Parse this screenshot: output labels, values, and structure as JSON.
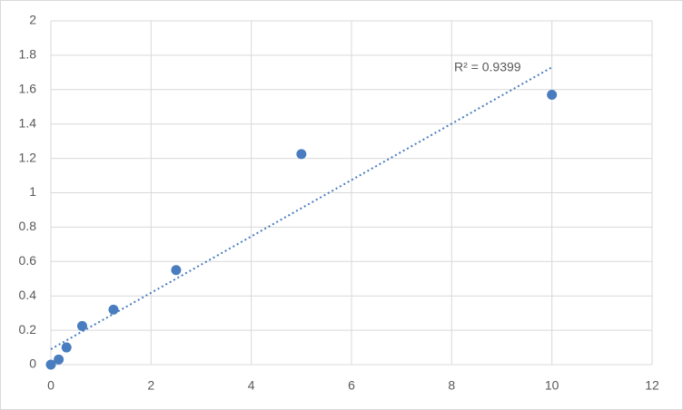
{
  "chart_data": {
    "type": "scatter",
    "x": [
      0,
      0.156,
      0.3125,
      0.625,
      1.25,
      2.5,
      5,
      10
    ],
    "series": [
      {
        "color": "#4a7dbf",
        "values": [
          0,
          0.03,
          0.1,
          0.225,
          0.32,
          0.55,
          1.225,
          1.57
        ]
      }
    ],
    "trendline": {
      "x": [
        0,
        10
      ],
      "y": [
        0.09,
        1.73
      ],
      "color": "#4a7dbf"
    },
    "annotation": "R² = 0.9399",
    "xlim": [
      0,
      12
    ],
    "xticks": [
      0,
      2,
      4,
      6,
      8,
      10,
      12
    ],
    "ylim": [
      0,
      2
    ],
    "yticks": [
      0,
      0.2,
      0.4,
      0.6,
      0.8,
      1,
      1.2,
      1.4,
      1.6,
      1.8,
      2
    ],
    "grid": true
  }
}
